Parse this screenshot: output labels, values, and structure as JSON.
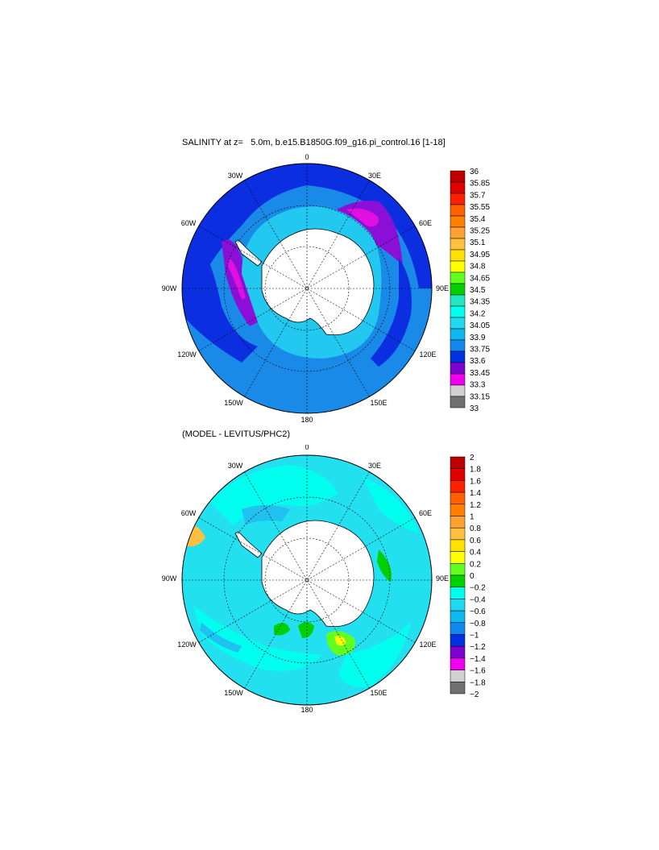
{
  "panels": [
    {
      "title": "SALINITY at z=   5.0m, b.e15.B1850G.f09_g16.pi_control.16 [1-18]",
      "lon_labels": [
        "0",
        "30E",
        "60E",
        "90E",
        "120E",
        "150E",
        "180",
        "150W",
        "120W",
        "90W",
        "60W",
        "30W"
      ],
      "colorbar": {
        "labels": [
          "36",
          "35.85",
          "35.7",
          "35.55",
          "35.4",
          "35.25",
          "35.1",
          "34.95",
          "34.8",
          "34.65",
          "34.5",
          "34.35",
          "34.2",
          "34.05",
          "33.9",
          "33.75",
          "33.6",
          "33.45",
          "33.3",
          "33.15",
          "33"
        ],
        "colors": [
          "#c00000",
          "#e00000",
          "#ff2000",
          "#ff6000",
          "#ff8000",
          "#ffa030",
          "#ffc040",
          "#ffe000",
          "#ffff00",
          "#60ff20",
          "#00d000",
          "#20e8c0",
          "#00ffee",
          "#20d8f0",
          "#10b8f0",
          "#1088f0",
          "#0030e0",
          "#8000d0",
          "#ee00ee",
          "#d0d0d0",
          "#707070"
        ]
      }
    },
    {
      "title": "(MODEL - LEVITUS/PHC2)",
      "lon_labels": [
        "0",
        "30E",
        "60E",
        "90E",
        "120E",
        "150E",
        "180",
        "150W",
        "120W",
        "90W",
        "60W",
        "30W"
      ],
      "colorbar": {
        "labels": [
          "2",
          "1.8",
          "1.6",
          "1.4",
          "1.2",
          "1",
          "0.8",
          "0.6",
          "0.4",
          "0.2",
          "0",
          "−0.2",
          "−0.4",
          "−0.6",
          "−0.8",
          "−1",
          "−1.2",
          "−1.4",
          "−1.6",
          "−1.8",
          "−2"
        ],
        "colors": [
          "#c00000",
          "#e00000",
          "#ff2000",
          "#ff6000",
          "#ff8000",
          "#ffa030",
          "#ffc040",
          "#ffe000",
          "#ffff00",
          "#60ff20",
          "#00d000",
          "#00ffee",
          "#20d8f0",
          "#10b8f0",
          "#1088f0",
          "#0030e0",
          "#8000d0",
          "#ee00ee",
          "#d0d0d0",
          "#707070"
        ]
      }
    }
  ]
}
